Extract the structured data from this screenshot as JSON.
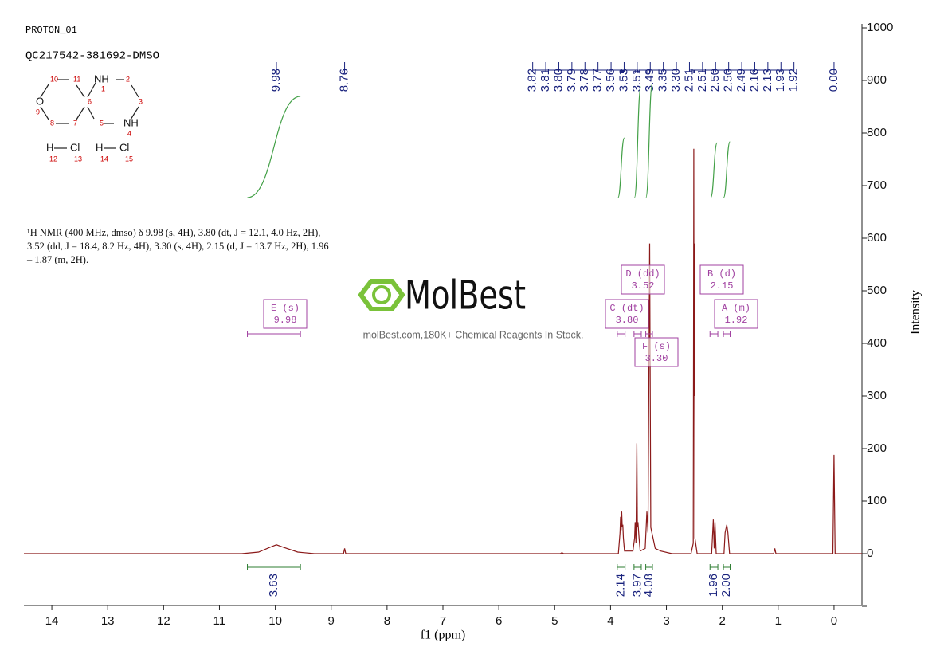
{
  "header": {
    "experiment": "PROTON_01",
    "sample": "QC217542-381692-DMSO"
  },
  "structure": {
    "atoms": [
      "NH",
      "1",
      "2",
      "3",
      "NH",
      "4",
      "5",
      "6",
      "7",
      "8",
      "O",
      "9",
      "10",
      "11",
      "H",
      "Cl",
      "12",
      "13",
      "H",
      "Cl",
      "14",
      "15"
    ]
  },
  "description": "¹H NMR (400 MHz, dmso) δ 9.98 (s, 4H), 3.80 (dt, J = 12.1, 4.0 Hz, 2H), 3.52 (dd, J = 18.4, 8.2 Hz, 4H), 3.30 (s, 4H), 2.15 (d, J = 13.7 Hz, 2H), 1.96 – 1.87 (m, 2H).",
  "watermark": {
    "logo": "MolBest",
    "tagline": "molBest.com,180K+ Chemical Reagents In Stock."
  },
  "chart_data": {
    "type": "nmr",
    "xlabel": "f1 (ppm)",
    "ylabel": "Intensity",
    "xlim": [
      14.5,
      -0.5
    ],
    "xticks": [
      14,
      13,
      12,
      11,
      10,
      9,
      8,
      7,
      6,
      5,
      4,
      3,
      2,
      1,
      0
    ],
    "ylim": [
      -100,
      1000
    ],
    "yticks": [
      0,
      100,
      200,
      300,
      400,
      500,
      600,
      700,
      800,
      900,
      1000
    ],
    "color": "#8b1a1a",
    "x": [
      14.5,
      10.6,
      10.3,
      10.1,
      9.98,
      9.85,
      9.6,
      9.3,
      8.78,
      8.76,
      8.74,
      4.9,
      4.87,
      4.84,
      3.86,
      3.83,
      3.82,
      3.81,
      3.8,
      3.79,
      3.78,
      3.77,
      3.75,
      3.6,
      3.57,
      3.56,
      3.545,
      3.53,
      3.52,
      3.51,
      3.49,
      3.47,
      3.38,
      3.35,
      3.33,
      3.3,
      3.28,
      3.2,
      3.1,
      2.9,
      2.56,
      2.52,
      2.51,
      2.505,
      2.5,
      2.49,
      2.45,
      2.19,
      2.16,
      2.145,
      2.13,
      2.11,
      1.97,
      1.95,
      1.93,
      1.92,
      1.9,
      1.87,
      1.08,
      1.06,
      1.04,
      0.02,
      0,
      -0.02,
      -0.5
    ],
    "values": [
      0,
      0,
      3,
      12,
      17,
      12,
      3,
      0,
      0,
      10,
      0,
      0,
      2,
      0,
      0,
      40,
      70,
      45,
      80,
      50,
      55,
      30,
      5,
      5,
      30,
      60,
      20,
      210,
      50,
      60,
      30,
      5,
      10,
      80,
      40,
      590,
      50,
      10,
      5,
      0,
      0,
      20,
      770,
      300,
      590,
      30,
      0,
      0,
      65,
      10,
      60,
      0,
      0,
      40,
      50,
      55,
      40,
      0,
      0,
      10,
      0,
      0,
      188,
      0,
      0
    ],
    "peak_labels": [
      "9.98",
      "8.76",
      "3.82",
      "3.81",
      "3.80",
      "3.79",
      "3.78",
      "3.77",
      "3.56",
      "3.53",
      "3.51",
      "3.49",
      "3.35",
      "3.30",
      "2.51",
      "2.51",
      "2.50",
      "2.50",
      "2.49",
      "2.16",
      "2.13",
      "1.93",
      "1.92",
      "0.00"
    ],
    "integrals": [
      {
        "range": [
          10.5,
          9.55
        ],
        "value": 3.63
      },
      {
        "range": [
          3.88,
          3.74
        ],
        "value": 2.14
      },
      {
        "range": [
          3.58,
          3.45
        ],
        "value": 3.97
      },
      {
        "range": [
          3.37,
          3.25
        ],
        "value": 4.08
      },
      {
        "range": [
          2.22,
          2.08
        ],
        "value": 1.96
      },
      {
        "range": [
          1.98,
          1.86
        ],
        "value": {
          "value": 2,
          "label": "2.00"
        }
      }
    ],
    "multiplets": [
      {
        "name": "E (s)",
        "shift": "9.98",
        "range": [
          10.5,
          9.55
        ]
      },
      {
        "name": "D (dd)",
        "shift": "3.52",
        "range": [
          3.58,
          3.45
        ]
      },
      {
        "name": "C (dt)",
        "shift": "3.80",
        "range": [
          3.88,
          3.74
        ]
      },
      {
        "name": "F (s)",
        "shift": "3.30",
        "range": [
          3.37,
          3.25
        ]
      },
      {
        "name": "B (d)",
        "shift": "2.15",
        "range": [
          2.22,
          2.08
        ]
      },
      {
        "name": "A (m)",
        "shift": "1.92",
        "range": [
          1.98,
          1.86
        ]
      }
    ]
  }
}
